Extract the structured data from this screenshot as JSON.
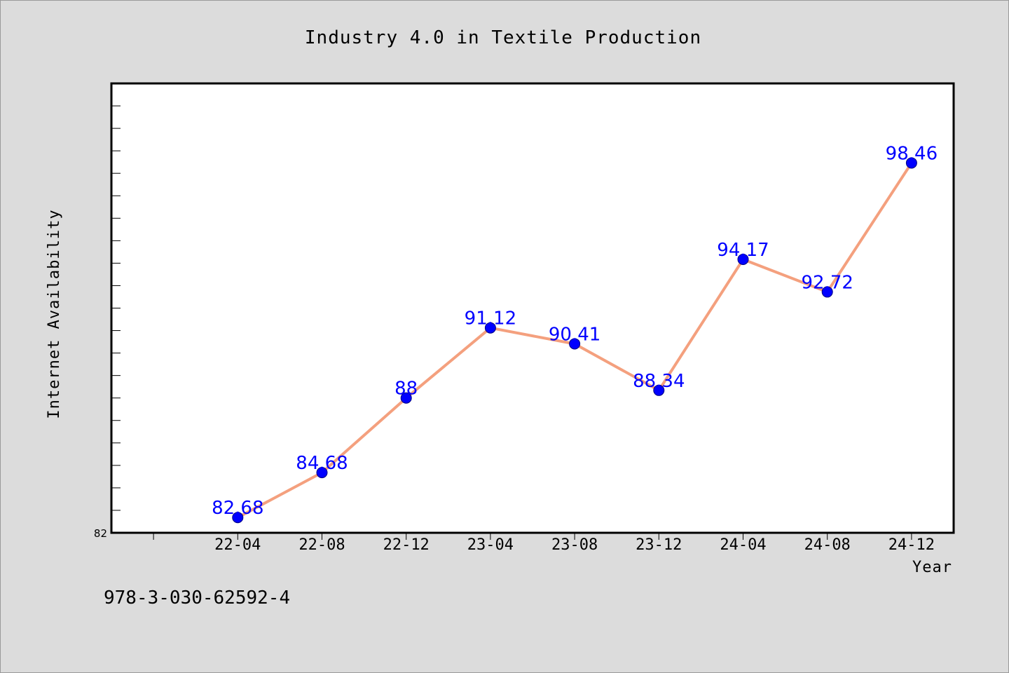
{
  "chart_data": {
    "type": "line",
    "title": "Industry 4.0 in Textile Production",
    "xlabel": "Year",
    "ylabel": "Internet Availability",
    "categories": [
      "22-04",
      "22-08",
      "22-12",
      "23-04",
      "23-08",
      "23-12",
      "24-04",
      "24-08",
      "24-12"
    ],
    "series": [
      {
        "values": [
          82.68,
          84.68,
          88,
          91.12,
          90.41,
          88.34,
          94.17,
          92.72,
          98.46
        ]
      }
    ],
    "data_labels": [
      "82.68",
      "84.68",
      "88",
      "91.12",
      "90.41",
      "88.34",
      "94.17",
      "92.72",
      "98.46"
    ],
    "ylim": [
      82,
      102
    ],
    "y_tick_labels": [
      "82"
    ],
    "y_minor_tick_step": 1,
    "grid": false,
    "legend": "none",
    "colors": {
      "background": "#dcdcdc",
      "plot_background": "#ffffff",
      "line": "#f4a07e",
      "marker": "#0000ff",
      "data_label": "#0000ff",
      "axis": "#000000"
    },
    "footnote": "978-3-030-62592-4"
  }
}
